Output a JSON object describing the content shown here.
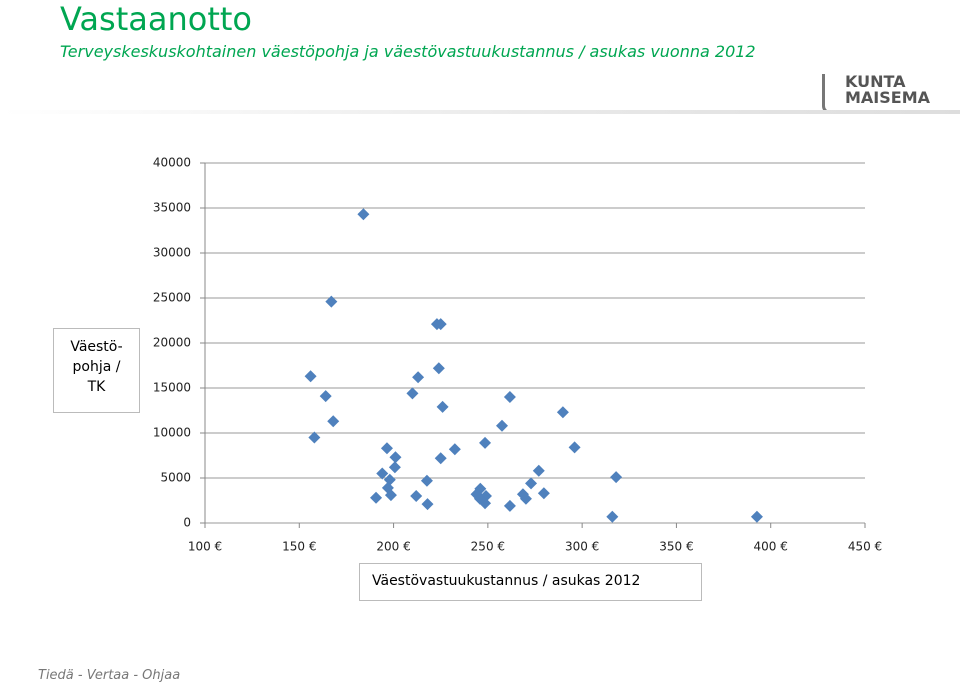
{
  "header": {
    "title": "Vastaanotto",
    "subtitle": "Terveyskeskuskohtainen väestöpohja ja väestövastuukustannus / asukas vuonna 2012",
    "logo_line1": "KUNTA",
    "logo_line2": "MAISEMA"
  },
  "footer": {
    "tagline": "Tiedä - Vertaa - Ohjaa"
  },
  "chart_data": {
    "type": "scatter",
    "x_label": "Väestövastuukustannus / asukas 2012",
    "y_label": "Väestö-pohja / TK",
    "color": "#4f81bd",
    "grid": true,
    "x": [
      184,
      167,
      156,
      164,
      158,
      168,
      223,
      225,
      224,
      213,
      210,
      226,
      196.5,
      201,
      200.7,
      194,
      198,
      197,
      198.6,
      190.7,
      212,
      217.7,
      218,
      225,
      232.5,
      248.5,
      257.5,
      261.7,
      289.8,
      296,
      277,
      272.9,
      279.7,
      268.6,
      270.2,
      261.7,
      246,
      244,
      249,
      248.5,
      245.8,
      318,
      316,
      392.7
    ],
    "values": [
      34300,
      24600,
      16300,
      14100,
      9500,
      11300,
      22100,
      22100,
      17200,
      16200,
      14400,
      12900,
      8300,
      7300,
      6200,
      5500,
      4800,
      3900,
      3100,
      2800,
      3000,
      4700,
      2100,
      7200,
      8200,
      8900,
      10800,
      14000,
      12300,
      8400,
      5800,
      4400,
      3300,
      3200,
      2700,
      1900,
      3800,
      3200,
      3000,
      2200,
      2700,
      5100,
      700,
      700
    ],
    "xlim": [
      100,
      450
    ],
    "ylim": [
      0,
      40000
    ],
    "xticks": [
      {
        "value": 100,
        "label": "100 €"
      },
      {
        "value": 150,
        "label": "150 €"
      },
      {
        "value": 200,
        "label": "200 €"
      },
      {
        "value": 250,
        "label": "250 €"
      },
      {
        "value": 300,
        "label": "300 €"
      },
      {
        "value": 350,
        "label": "350 €"
      },
      {
        "value": 400,
        "label": "400 €"
      },
      {
        "value": 450,
        "label": "450 €"
      }
    ],
    "yticks": [
      0,
      5000,
      10000,
      15000,
      20000,
      25000,
      30000,
      35000,
      40000
    ]
  }
}
